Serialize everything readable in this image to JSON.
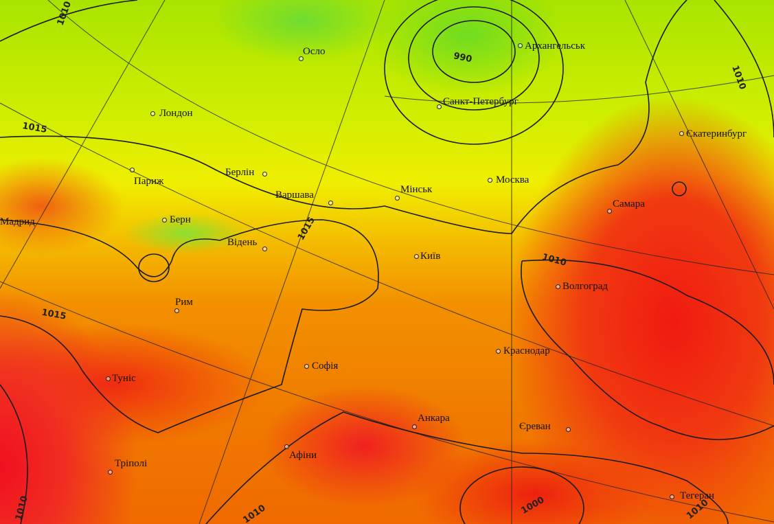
{
  "map": {
    "cities": [
      {
        "name": "Осло"
      },
      {
        "name": "Архангельськ"
      },
      {
        "name": "Лондон"
      },
      {
        "name": "Санкт-Петербург"
      },
      {
        "name": "Єкатеринбург"
      },
      {
        "name": "Берлін"
      },
      {
        "name": "Париж"
      },
      {
        "name": "Варшава"
      },
      {
        "name": "Мінськ"
      },
      {
        "name": "Москва"
      },
      {
        "name": "Самара"
      },
      {
        "name": "Мадрид"
      },
      {
        "name": "Берн"
      },
      {
        "name": "Відень"
      },
      {
        "name": "Київ"
      },
      {
        "name": "Волгоград"
      },
      {
        "name": "Рим"
      },
      {
        "name": "Софія"
      },
      {
        "name": "Краснодар"
      },
      {
        "name": "Туніс"
      },
      {
        "name": "Анкара"
      },
      {
        "name": "Єреван"
      },
      {
        "name": "Афіни"
      },
      {
        "name": "Тріполі"
      },
      {
        "name": "Тегеран"
      }
    ],
    "isobar_labels": [
      "1010",
      "990",
      "1010",
      "1015",
      "1015",
      "1010",
      "1015",
      "1010",
      "1000",
      "1010",
      "1010"
    ],
    "colors": {
      "low": "#70dc20",
      "mid": "#f0ee00",
      "high": "#f07a00",
      "very_high": "#f01a10",
      "isobar": "#222222"
    }
  }
}
